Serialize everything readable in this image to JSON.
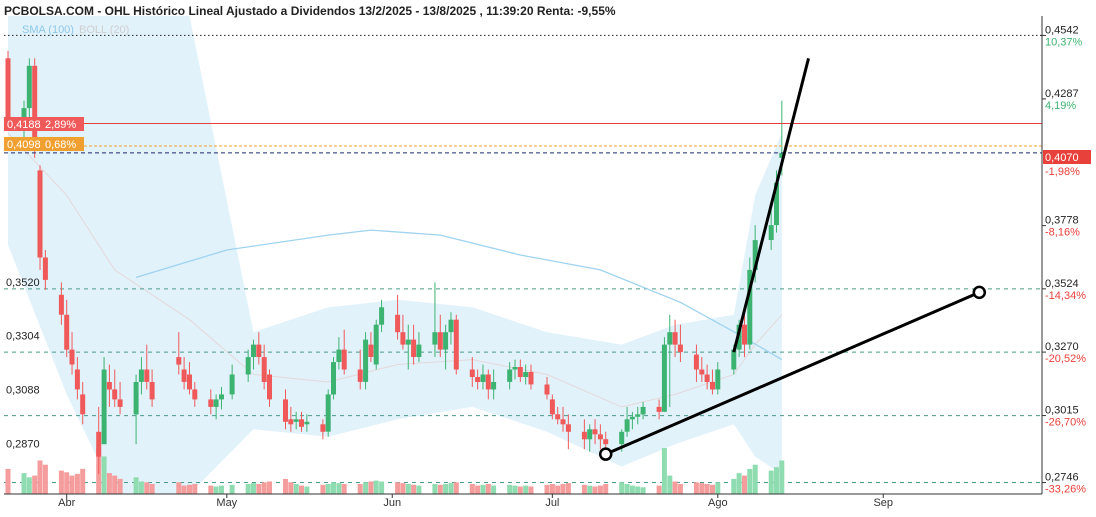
{
  "header": {
    "title": "PCBOLSA.COM - OHL Histórico Lineal Ajustado a Dividendos 13/2/2025 - 13/8/2025 , 11:39:20 Renta: -9,55%"
  },
  "legend": {
    "sma_label": "SMA (100)",
    "boll_label": "BOLL (20)"
  },
  "colors": {
    "up": "#3cb371",
    "down": "#f0595a",
    "vol_up": "#8fdcb0",
    "vol_down": "#f59c9c",
    "sma": "#9fd3f0",
    "band_fill": "#dff1fb",
    "current_price": "#e8403a",
    "orange": "#f0a030",
    "trendline": "#000000"
  },
  "price_labels": {
    "upper_red": {
      "price": "0,4188",
      "pct": "2,89%"
    },
    "upper_orange": {
      "price": "0,4098",
      "pct": "0,68%"
    },
    "current": {
      "price": "0,4070",
      "pct": "-1,98%"
    }
  },
  "chart_data": {
    "type": "candlestick",
    "title": "PCBOLSA.COM - OHL Histórico Lineal Ajustado a Dividendos 13/2/2025 - 13/8/2025 , 11:39:20 Renta: -9,55%",
    "x_range": [
      "2025-03-21",
      "2025-09-30"
    ],
    "month_labels": [
      {
        "date": "2025-04-01",
        "label": "Abr"
      },
      {
        "date": "2025-05-01",
        "label": "May"
      },
      {
        "date": "2025-06-01",
        "label": "Jun"
      },
      {
        "date": "2025-07-01",
        "label": "Jul"
      },
      {
        "date": "2025-08-01",
        "label": "Ago"
      },
      {
        "date": "2025-09-01",
        "label": "Sep"
      }
    ],
    "ylim": [
      0.27,
      0.462
    ],
    "right_ticks": [
      {
        "value": 0.4542,
        "price": "0,4542",
        "pct": "10,37%",
        "sign": "up",
        "line": "dotted"
      },
      {
        "value": 0.4287,
        "price": "0,4287",
        "pct": "4,19%",
        "sign": "up",
        "line": "none"
      },
      {
        "value": 0.3778,
        "price": "0,3778",
        "pct": "-8,16%",
        "sign": "down",
        "line": "none"
      },
      {
        "value": 0.3524,
        "price": "0,3524",
        "pct": "-14,34%",
        "sign": "down",
        "line": "dashed"
      },
      {
        "value": 0.327,
        "price": "0,3270",
        "pct": "-20,52%",
        "sign": "down",
        "line": "dashed"
      },
      {
        "value": 0.3015,
        "price": "0,3015",
        "pct": "-26,70%",
        "sign": "down",
        "line": "dashed"
      },
      {
        "value": 0.2746,
        "price": "0,2746",
        "pct": "-33,26%",
        "sign": "down",
        "line": "dashed"
      }
    ],
    "left_levels": [
      {
        "value": 0.352,
        "label": "0,3520"
      },
      {
        "value": 0.3304,
        "label": "0,3304"
      },
      {
        "value": 0.3088,
        "label": "0,3088"
      },
      {
        "value": 0.287,
        "label": "0,2870"
      }
    ],
    "horizontal_lines": [
      {
        "value": 0.4188,
        "kind": "solid-red"
      },
      {
        "value": 0.4098,
        "kind": "dashed-orange"
      },
      {
        "value": 0.407,
        "kind": "dashed-navy"
      }
    ],
    "current_price": 0.407,
    "candles": [
      {
        "d": "2025-03-21",
        "o": 0.445,
        "h": 0.448,
        "l": 0.418,
        "c": 0.42,
        "v": 30
      },
      {
        "d": "2025-03-24",
        "o": 0.42,
        "h": 0.428,
        "l": 0.412,
        "c": 0.425,
        "v": 25
      },
      {
        "d": "2025-03-25",
        "o": 0.425,
        "h": 0.445,
        "l": 0.418,
        "c": 0.442,
        "v": 20
      },
      {
        "d": "2025-03-26",
        "o": 0.442,
        "h": 0.445,
        "l": 0.405,
        "c": 0.41,
        "v": 22
      },
      {
        "d": "2025-03-27",
        "o": 0.4,
        "h": 0.402,
        "l": 0.36,
        "c": 0.365,
        "v": 40
      },
      {
        "d": "2025-03-28",
        "o": 0.365,
        "h": 0.368,
        "l": 0.352,
        "c": 0.356,
        "v": 35
      },
      {
        "d": "2025-03-31",
        "o": 0.35,
        "h": 0.355,
        "l": 0.338,
        "c": 0.342,
        "v": 28
      },
      {
        "d": "2025-04-01",
        "o": 0.342,
        "h": 0.348,
        "l": 0.325,
        "c": 0.328,
        "v": 26
      },
      {
        "d": "2025-04-02",
        "o": 0.328,
        "h": 0.335,
        "l": 0.318,
        "c": 0.322,
        "v": 22
      },
      {
        "d": "2025-04-03",
        "o": 0.32,
        "h": 0.325,
        "l": 0.308,
        "c": 0.312,
        "v": 24
      },
      {
        "d": "2025-04-04",
        "o": 0.31,
        "h": 0.315,
        "l": 0.298,
        "c": 0.302,
        "v": 30
      },
      {
        "d": "2025-04-07",
        "o": 0.295,
        "h": 0.305,
        "l": 0.278,
        "c": 0.285,
        "v": 55
      },
      {
        "d": "2025-04-08",
        "o": 0.29,
        "h": 0.325,
        "l": 0.29,
        "c": 0.32,
        "v": 45
      },
      {
        "d": "2025-04-09",
        "o": 0.315,
        "h": 0.322,
        "l": 0.305,
        "c": 0.312,
        "v": 25
      },
      {
        "d": "2025-04-10",
        "o": 0.312,
        "h": 0.32,
        "l": 0.305,
        "c": 0.308,
        "v": 22
      },
      {
        "d": "2025-04-11",
        "o": 0.308,
        "h": 0.315,
        "l": 0.302,
        "c": 0.305,
        "v": 18
      },
      {
        "d": "2025-04-14",
        "o": 0.302,
        "h": 0.318,
        "l": 0.29,
        "c": 0.315,
        "v": 20
      },
      {
        "d": "2025-04-15",
        "o": 0.315,
        "h": 0.325,
        "l": 0.31,
        "c": 0.32,
        "v": 15
      },
      {
        "d": "2025-04-16",
        "o": 0.32,
        "h": 0.33,
        "l": 0.312,
        "c": 0.315,
        "v": 14
      },
      {
        "d": "2025-04-17",
        "o": 0.315,
        "h": 0.32,
        "l": 0.305,
        "c": 0.308,
        "v": 12
      },
      {
        "d": "2025-04-22",
        "o": 0.325,
        "h": 0.335,
        "l": 0.318,
        "c": 0.322,
        "v": 14
      },
      {
        "d": "2025-04-23",
        "o": 0.32,
        "h": 0.325,
        "l": 0.312,
        "c": 0.315,
        "v": 10
      },
      {
        "d": "2025-04-24",
        "o": 0.318,
        "h": 0.323,
        "l": 0.31,
        "c": 0.312,
        "v": 11
      },
      {
        "d": "2025-04-25",
        "o": 0.312,
        "h": 0.315,
        "l": 0.305,
        "c": 0.308,
        "v": 12
      },
      {
        "d": "2025-04-28",
        "o": 0.308,
        "h": 0.312,
        "l": 0.302,
        "c": 0.305,
        "v": 10
      },
      {
        "d": "2025-04-29",
        "o": 0.305,
        "h": 0.31,
        "l": 0.3,
        "c": 0.308,
        "v": 9
      },
      {
        "d": "2025-04-30",
        "o": 0.308,
        "h": 0.313,
        "l": 0.304,
        "c": 0.31,
        "v": 10
      },
      {
        "d": "2025-05-02",
        "o": 0.31,
        "h": 0.322,
        "l": 0.308,
        "c": 0.318,
        "v": 11
      },
      {
        "d": "2025-05-05",
        "o": 0.318,
        "h": 0.328,
        "l": 0.315,
        "c": 0.325,
        "v": 12
      },
      {
        "d": "2025-05-06",
        "o": 0.325,
        "h": 0.332,
        "l": 0.32,
        "c": 0.33,
        "v": 13
      },
      {
        "d": "2025-05-07",
        "o": 0.33,
        "h": 0.335,
        "l": 0.322,
        "c": 0.325,
        "v": 12
      },
      {
        "d": "2025-05-08",
        "o": 0.325,
        "h": 0.33,
        "l": 0.312,
        "c": 0.315,
        "v": 14
      },
      {
        "d": "2025-05-09",
        "o": 0.318,
        "h": 0.32,
        "l": 0.305,
        "c": 0.308,
        "v": 15
      },
      {
        "d": "2025-05-12",
        "o": 0.308,
        "h": 0.312,
        "l": 0.296,
        "c": 0.299,
        "v": 18
      },
      {
        "d": "2025-05-13",
        "o": 0.3,
        "h": 0.305,
        "l": 0.295,
        "c": 0.298,
        "v": 14
      },
      {
        "d": "2025-05-14",
        "o": 0.299,
        "h": 0.303,
        "l": 0.296,
        "c": 0.3,
        "v": 12
      },
      {
        "d": "2025-05-15",
        "o": 0.3,
        "h": 0.303,
        "l": 0.295,
        "c": 0.297,
        "v": 10
      },
      {
        "d": "2025-05-16",
        "o": 0.298,
        "h": 0.302,
        "l": 0.295,
        "c": 0.299,
        "v": 9
      },
      {
        "d": "2025-05-19",
        "o": 0.298,
        "h": 0.3,
        "l": 0.292,
        "c": 0.295,
        "v": 11
      },
      {
        "d": "2025-05-20",
        "o": 0.295,
        "h": 0.312,
        "l": 0.293,
        "c": 0.31,
        "v": 12
      },
      {
        "d": "2025-05-21",
        "o": 0.31,
        "h": 0.325,
        "l": 0.308,
        "c": 0.323,
        "v": 14
      },
      {
        "d": "2025-05-22",
        "o": 0.323,
        "h": 0.333,
        "l": 0.32,
        "c": 0.328,
        "v": 13
      },
      {
        "d": "2025-05-23",
        "o": 0.328,
        "h": 0.336,
        "l": 0.318,
        "c": 0.32,
        "v": 12
      },
      {
        "d": "2025-05-26",
        "o": 0.32,
        "h": 0.328,
        "l": 0.312,
        "c": 0.315,
        "v": 12
      },
      {
        "d": "2025-05-27",
        "o": 0.315,
        "h": 0.335,
        "l": 0.312,
        "c": 0.332,
        "v": 14
      },
      {
        "d": "2025-05-28",
        "o": 0.33,
        "h": 0.335,
        "l": 0.323,
        "c": 0.325,
        "v": 15
      },
      {
        "d": "2025-05-29",
        "o": 0.322,
        "h": 0.34,
        "l": 0.32,
        "c": 0.338,
        "v": 16
      },
      {
        "d": "2025-05-30",
        "o": 0.338,
        "h": 0.348,
        "l": 0.335,
        "c": 0.345,
        "v": 15
      },
      {
        "d": "2025-06-02",
        "o": 0.342,
        "h": 0.35,
        "l": 0.332,
        "c": 0.335,
        "v": 14
      },
      {
        "d": "2025-06-03",
        "o": 0.335,
        "h": 0.342,
        "l": 0.328,
        "c": 0.33,
        "v": 13
      },
      {
        "d": "2025-06-04",
        "o": 0.33,
        "h": 0.338,
        "l": 0.32,
        "c": 0.332,
        "v": 12
      },
      {
        "d": "2025-06-05",
        "o": 0.332,
        "h": 0.338,
        "l": 0.322,
        "c": 0.325,
        "v": 11
      },
      {
        "d": "2025-06-06",
        "o": 0.325,
        "h": 0.335,
        "l": 0.323,
        "c": 0.33,
        "v": 10
      },
      {
        "d": "2025-06-09",
        "o": 0.33,
        "h": 0.355,
        "l": 0.325,
        "c": 0.335,
        "v": 12
      },
      {
        "d": "2025-06-10",
        "o": 0.335,
        "h": 0.342,
        "l": 0.325,
        "c": 0.328,
        "v": 11
      },
      {
        "d": "2025-06-11",
        "o": 0.328,
        "h": 0.338,
        "l": 0.32,
        "c": 0.335,
        "v": 12
      },
      {
        "d": "2025-06-12",
        "o": 0.335,
        "h": 0.343,
        "l": 0.33,
        "c": 0.34,
        "v": 13
      },
      {
        "d": "2025-06-13",
        "o": 0.34,
        "h": 0.342,
        "l": 0.318,
        "c": 0.32,
        "v": 14
      },
      {
        "d": "2025-06-16",
        "o": 0.32,
        "h": 0.325,
        "l": 0.313,
        "c": 0.317,
        "v": 12
      },
      {
        "d": "2025-06-17",
        "o": 0.317,
        "h": 0.32,
        "l": 0.312,
        "c": 0.315,
        "v": 10
      },
      {
        "d": "2025-06-18",
        "o": 0.315,
        "h": 0.322,
        "l": 0.312,
        "c": 0.318,
        "v": 11
      },
      {
        "d": "2025-06-19",
        "o": 0.318,
        "h": 0.32,
        "l": 0.308,
        "c": 0.312,
        "v": 12
      },
      {
        "d": "2025-06-20",
        "o": 0.312,
        "h": 0.32,
        "l": 0.308,
        "c": 0.315,
        "v": 10
      },
      {
        "d": "2025-06-23",
        "o": 0.315,
        "h": 0.323,
        "l": 0.312,
        "c": 0.32,
        "v": 11
      },
      {
        "d": "2025-06-24",
        "o": 0.32,
        "h": 0.324,
        "l": 0.316,
        "c": 0.321,
        "v": 10
      },
      {
        "d": "2025-06-25",
        "o": 0.321,
        "h": 0.324,
        "l": 0.315,
        "c": 0.317,
        "v": 9
      },
      {
        "d": "2025-06-26",
        "o": 0.317,
        "h": 0.322,
        "l": 0.314,
        "c": 0.319,
        "v": 10
      },
      {
        "d": "2025-06-27",
        "o": 0.319,
        "h": 0.322,
        "l": 0.312,
        "c": 0.314,
        "v": 9
      },
      {
        "d": "2025-06-30",
        "o": 0.314,
        "h": 0.317,
        "l": 0.308,
        "c": 0.31,
        "v": 11
      },
      {
        "d": "2025-07-01",
        "o": 0.308,
        "h": 0.31,
        "l": 0.3,
        "c": 0.302,
        "v": 12
      },
      {
        "d": "2025-07-02",
        "o": 0.302,
        "h": 0.305,
        "l": 0.298,
        "c": 0.3,
        "v": 10
      },
      {
        "d": "2025-07-03",
        "o": 0.3,
        "h": 0.305,
        "l": 0.295,
        "c": 0.298,
        "v": 12
      },
      {
        "d": "2025-07-04",
        "o": 0.298,
        "h": 0.302,
        "l": 0.288,
        "c": 0.295,
        "v": 13
      },
      {
        "d": "2025-07-07",
        "o": 0.295,
        "h": 0.3,
        "l": 0.288,
        "c": 0.292,
        "v": 11
      },
      {
        "d": "2025-07-08",
        "o": 0.292,
        "h": 0.298,
        "l": 0.287,
        "c": 0.296,
        "v": 10
      },
      {
        "d": "2025-07-09",
        "o": 0.296,
        "h": 0.3,
        "l": 0.29,
        "c": 0.294,
        "v": 9
      },
      {
        "d": "2025-07-10",
        "o": 0.294,
        "h": 0.298,
        "l": 0.288,
        "c": 0.292,
        "v": 10
      },
      {
        "d": "2025-07-11",
        "o": 0.292,
        "h": 0.295,
        "l": 0.286,
        "c": 0.29,
        "v": 12
      },
      {
        "d": "2025-07-14",
        "o": 0.29,
        "h": 0.296,
        "l": 0.287,
        "c": 0.295,
        "v": 14
      },
      {
        "d": "2025-07-15",
        "o": 0.295,
        "h": 0.305,
        "l": 0.293,
        "c": 0.3,
        "v": 12
      },
      {
        "d": "2025-07-16",
        "o": 0.3,
        "h": 0.303,
        "l": 0.296,
        "c": 0.301,
        "v": 10
      },
      {
        "d": "2025-07-17",
        "o": 0.301,
        "h": 0.305,
        "l": 0.298,
        "c": 0.302,
        "v": 9
      },
      {
        "d": "2025-07-18",
        "o": 0.302,
        "h": 0.307,
        "l": 0.3,
        "c": 0.305,
        "v": 8
      },
      {
        "d": "2025-07-21",
        "o": 0.305,
        "h": 0.308,
        "l": 0.3,
        "c": 0.303,
        "v": 10
      },
      {
        "d": "2025-07-22",
        "o": 0.303,
        "h": 0.333,
        "l": 0.303,
        "c": 0.33,
        "v": 55
      },
      {
        "d": "2025-07-23",
        "o": 0.33,
        "h": 0.342,
        "l": 0.305,
        "c": 0.335,
        "v": 22
      },
      {
        "d": "2025-07-24",
        "o": 0.335,
        "h": 0.34,
        "l": 0.325,
        "c": 0.33,
        "v": 15
      },
      {
        "d": "2025-07-25",
        "o": 0.33,
        "h": 0.338,
        "l": 0.323,
        "c": 0.327,
        "v": 12
      },
      {
        "d": "2025-07-28",
        "o": 0.326,
        "h": 0.33,
        "l": 0.315,
        "c": 0.32,
        "v": 14
      },
      {
        "d": "2025-07-29",
        "o": 0.32,
        "h": 0.325,
        "l": 0.315,
        "c": 0.318,
        "v": 13
      },
      {
        "d": "2025-07-30",
        "o": 0.318,
        "h": 0.322,
        "l": 0.312,
        "c": 0.315,
        "v": 12
      },
      {
        "d": "2025-07-31",
        "o": 0.315,
        "h": 0.32,
        "l": 0.31,
        "c": 0.312,
        "v": 11
      },
      {
        "d": "2025-08-01",
        "o": 0.312,
        "h": 0.323,
        "l": 0.31,
        "c": 0.32,
        "v": 14
      },
      {
        "d": "2025-08-04",
        "o": 0.32,
        "h": 0.33,
        "l": 0.318,
        "c": 0.328,
        "v": 18
      },
      {
        "d": "2025-08-05",
        "o": 0.328,
        "h": 0.34,
        "l": 0.325,
        "c": 0.338,
        "v": 25
      },
      {
        "d": "2025-08-06",
        "o": 0.338,
        "h": 0.342,
        "l": 0.325,
        "c": 0.33,
        "v": 22
      },
      {
        "d": "2025-08-07",
        "o": 0.33,
        "h": 0.365,
        "l": 0.328,
        "c": 0.36,
        "v": 30
      },
      {
        "d": "2025-08-08",
        "o": 0.36,
        "h": 0.378,
        "l": 0.355,
        "c": 0.372,
        "v": 35
      },
      {
        "d": "2025-08-11",
        "o": 0.372,
        "h": 0.385,
        "l": 0.368,
        "c": 0.378,
        "v": 28
      },
      {
        "d": "2025-08-12",
        "o": 0.378,
        "h": 0.4,
        "l": 0.375,
        "c": 0.395,
        "v": 32
      },
      {
        "d": "2025-08-13",
        "o": 0.405,
        "h": 0.428,
        "l": 0.398,
        "c": 0.407,
        "v": 40
      }
    ],
    "sma100": [
      {
        "d": "2025-04-14",
        "v": 0.357
      },
      {
        "d": "2025-05-01",
        "v": 0.368
      },
      {
        "d": "2025-05-20",
        "v": 0.374
      },
      {
        "d": "2025-05-28",
        "v": 0.376
      },
      {
        "d": "2025-06-10",
        "v": 0.374
      },
      {
        "d": "2025-06-25",
        "v": 0.366
      },
      {
        "d": "2025-07-10",
        "v": 0.36
      },
      {
        "d": "2025-07-25",
        "v": 0.347
      },
      {
        "d": "2025-08-05",
        "v": 0.334
      },
      {
        "d": "2025-08-13",
        "v": 0.324
      }
    ],
    "bollinger": [
      {
        "d": "2025-03-21",
        "u": 0.462,
        "m": 0.415,
        "l": 0.37
      },
      {
        "d": "2025-04-01",
        "u": 0.462,
        "m": 0.39,
        "l": 0.31
      },
      {
        "d": "2025-04-10",
        "u": 0.462,
        "m": 0.36,
        "l": 0.27
      },
      {
        "d": "2025-04-24",
        "u": 0.462,
        "m": 0.34,
        "l": 0.27
      },
      {
        "d": "2025-05-06",
        "u": 0.335,
        "m": 0.318,
        "l": 0.296
      },
      {
        "d": "2025-05-20",
        "u": 0.345,
        "m": 0.315,
        "l": 0.293
      },
      {
        "d": "2025-06-02",
        "u": 0.348,
        "m": 0.322,
        "l": 0.3
      },
      {
        "d": "2025-06-16",
        "u": 0.345,
        "m": 0.324,
        "l": 0.305
      },
      {
        "d": "2025-06-30",
        "u": 0.335,
        "m": 0.318,
        "l": 0.295
      },
      {
        "d": "2025-07-14",
        "u": 0.33,
        "m": 0.305,
        "l": 0.281
      },
      {
        "d": "2025-07-24",
        "u": 0.338,
        "m": 0.31,
        "l": 0.29
      },
      {
        "d": "2025-08-04",
        "u": 0.342,
        "m": 0.318,
        "l": 0.298
      },
      {
        "d": "2025-08-08",
        "u": 0.39,
        "m": 0.33,
        "l": 0.285
      },
      {
        "d": "2025-08-13",
        "u": 0.415,
        "m": 0.342,
        "l": 0.278
      }
    ],
    "trendlines": [
      {
        "from": {
          "d": "2025-07-11",
          "v": 0.286
        },
        "to": {
          "d": "2025-09-19",
          "v": 0.351
        },
        "endpoint_markers": true
      },
      {
        "from": {
          "d": "2025-08-04",
          "v": 0.327
        },
        "to": {
          "d": "2025-08-18",
          "v": 0.445
        },
        "endpoint_markers": false
      }
    ]
  }
}
